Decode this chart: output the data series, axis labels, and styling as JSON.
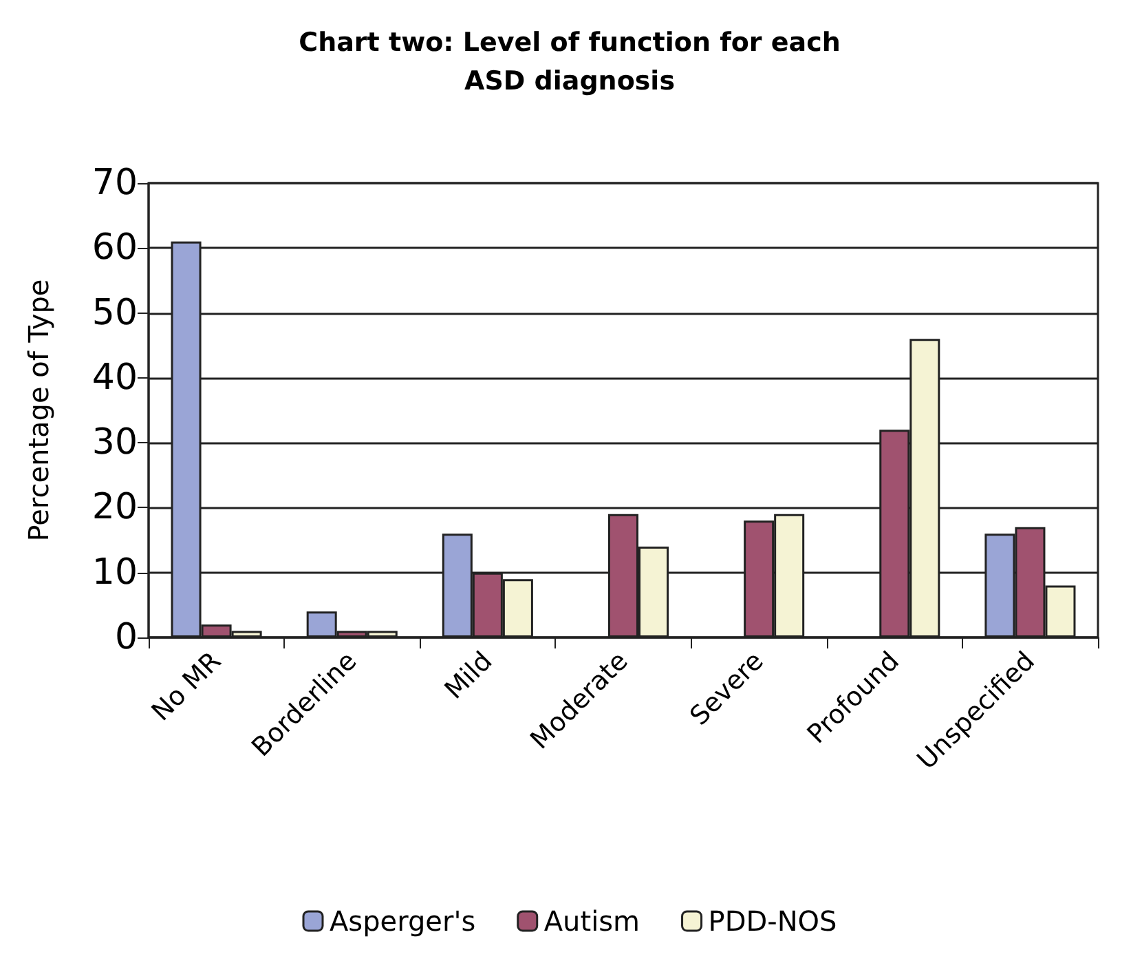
{
  "chart_data": {
    "type": "bar",
    "title": "Chart two: Level of function for each\nASD diagnosis",
    "ylabel": "Percentage of Type",
    "categories": [
      "No MR",
      "Borderline",
      "Mild",
      "Moderate",
      "Severe",
      "Profound",
      "Unspecified"
    ],
    "series": [
      {
        "name": "Asperger's",
        "color": "#9aa5d6",
        "values": [
          61,
          4,
          16,
          null,
          null,
          null,
          16
        ]
      },
      {
        "name": "Autism",
        "color": "#a0526f",
        "values": [
          2,
          1,
          10,
          19,
          18,
          32,
          17
        ]
      },
      {
        "name": "PDD-NOS",
        "color": "#f5f3d4",
        "values": [
          1,
          1,
          9,
          14,
          19,
          46,
          8
        ]
      }
    ],
    "ylim": [
      0,
      70
    ],
    "yticks": [
      0,
      10,
      20,
      30,
      40,
      50,
      60,
      70
    ],
    "grid": "y",
    "legend": "bottom"
  }
}
